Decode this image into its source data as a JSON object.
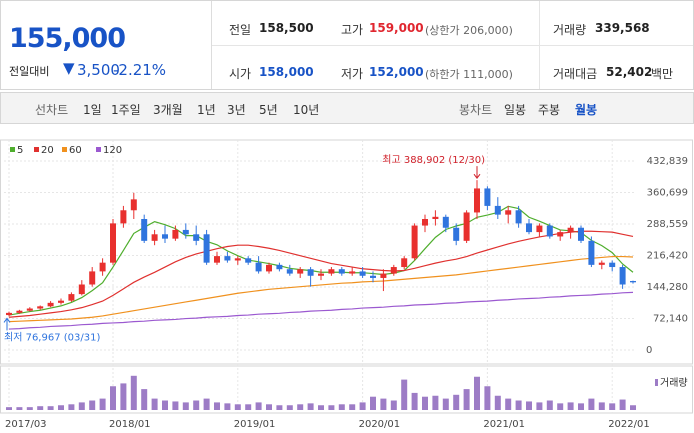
{
  "header": {
    "price": "155,000",
    "change_label": "전일대비",
    "change_arrow": "▼",
    "change": "3,500",
    "change_rate": "-2.21%"
  },
  "quote": [
    {
      "label": "전일",
      "value": "158,500"
    },
    {
      "label": "고가",
      "value": "159,000",
      "note": "(상한가 206,000)"
    },
    {
      "label": "거래량",
      "value": "339,568"
    },
    {
      "label": "시가",
      "value": "158,000"
    },
    {
      "label": "저가",
      "value": "152,000",
      "note": "(하한가 111,000)"
    },
    {
      "label": "거래대금",
      "value": "52,402",
      "unit": "백만"
    }
  ],
  "toolbar": {
    "line_label": "선차트",
    "line_periods": [
      "1일",
      "1주일",
      "3개월",
      "1년",
      "3년",
      "5년",
      "10년"
    ],
    "candle_label": "봉차트",
    "candle_periods": [
      "일봉",
      "주봉",
      "월봉"
    ],
    "selected_candle_period": 2
  },
  "chart_data": {
    "type": "candlestick",
    "categories": [
      "2017/03",
      null,
      null,
      null,
      null,
      null,
      null,
      null,
      null,
      null,
      "2018/01",
      null,
      null,
      null,
      null,
      null,
      null,
      null,
      null,
      null,
      null,
      null,
      "2019/01",
      null,
      null,
      null,
      null,
      null,
      null,
      null,
      null,
      null,
      null,
      null,
      "2020/01",
      null,
      null,
      null,
      null,
      null,
      null,
      null,
      null,
      null,
      null,
      null,
      "2021/01",
      null,
      null,
      null,
      null,
      null,
      null,
      null,
      null,
      null,
      null,
      null,
      "2022/01",
      null,
      null
    ],
    "open": [
      80000,
      85000,
      90000,
      95000,
      100000,
      108000,
      113000,
      128000,
      150000,
      180000,
      200000,
      290000,
      320000,
      300000,
      250000,
      265000,
      255000,
      275000,
      265000,
      265000,
      200000,
      215000,
      205000,
      210000,
      200000,
      180000,
      195000,
      185000,
      175000,
      185000,
      170000,
      175000,
      185000,
      175000,
      180000,
      170000,
      165000,
      175000,
      190000,
      210000,
      285000,
      300000,
      305000,
      280000,
      250000,
      315000,
      370000,
      330000,
      310000,
      320000,
      290000,
      270000,
      285000,
      260000,
      270000,
      280000,
      250000,
      195000,
      200000,
      190000,
      158000
    ],
    "high": [
      88000,
      92000,
      98000,
      102000,
      112000,
      118000,
      132000,
      160000,
      190000,
      210000,
      300000,
      330000,
      360000,
      310000,
      275000,
      285000,
      285000,
      290000,
      285000,
      275000,
      225000,
      225000,
      215000,
      215000,
      215000,
      200000,
      200000,
      195000,
      190000,
      190000,
      185000,
      190000,
      190000,
      190000,
      190000,
      180000,
      185000,
      195000,
      215000,
      290000,
      310000,
      320000,
      310000,
      290000,
      320000,
      388902,
      375000,
      350000,
      330000,
      330000,
      300000,
      290000,
      290000,
      275000,
      285000,
      285000,
      260000,
      205000,
      205000,
      195000,
      159000
    ],
    "low": [
      76967,
      83000,
      88000,
      92000,
      98000,
      104000,
      110000,
      125000,
      145000,
      170000,
      195000,
      280000,
      300000,
      245000,
      240000,
      245000,
      250000,
      255000,
      240000,
      195000,
      195000,
      200000,
      195000,
      195000,
      175000,
      175000,
      180000,
      170000,
      165000,
      145000,
      160000,
      170000,
      170000,
      170000,
      165000,
      155000,
      135000,
      170000,
      185000,
      205000,
      270000,
      285000,
      270000,
      240000,
      245000,
      300000,
      320000,
      300000,
      290000,
      280000,
      265000,
      260000,
      255000,
      250000,
      255000,
      245000,
      190000,
      185000,
      180000,
      140000,
      152000
    ],
    "close": [
      85000,
      90000,
      95000,
      100000,
      108000,
      113000,
      128000,
      150000,
      180000,
      200000,
      290000,
      320000,
      345000,
      250000,
      265000,
      255000,
      275000,
      265000,
      250000,
      200000,
      215000,
      205000,
      210000,
      200000,
      180000,
      195000,
      185000,
      175000,
      185000,
      170000,
      175000,
      185000,
      175000,
      180000,
      170000,
      165000,
      175000,
      190000,
      210000,
      285000,
      300000,
      305000,
      280000,
      250000,
      315000,
      370000,
      330000,
      310000,
      320000,
      290000,
      270000,
      285000,
      260000,
      270000,
      280000,
      250000,
      195000,
      200000,
      190000,
      150000,
      155000
    ],
    "up_color": "#e8302e",
    "down_color": "#2f74de",
    "ylim": [
      0,
      432839
    ],
    "yticks": [
      0,
      {
        "value": 72140,
        "label": "72,140"
      },
      {
        "value": 144280,
        "label": "144,280"
      },
      {
        "value": 216420,
        "label": "216,420"
      },
      {
        "value": 288559,
        "label": "288,559"
      },
      {
        "value": 360699,
        "label": "360,699"
      },
      {
        "value": 432839,
        "label": "432,839"
      }
    ],
    "grid": true,
    "moving_averages": [
      {
        "name": "5",
        "color": "#4fae2d",
        "values": [
          80000,
          84000,
          88000,
          91000,
          96000,
          101000,
          109000,
          120000,
          136000,
          154000,
          190000,
          228000,
          267000,
          281000,
          294000,
          287000,
          278000,
          262000,
          262000,
          249000,
          241000,
          227000,
          216000,
          206000,
          202000,
          198000,
          193000,
          187000,
          184000,
          182000,
          178000,
          178000,
          178000,
          177000,
          177000,
          175000,
          173000,
          176000,
          182000,
          205000,
          232000,
          258000,
          276000,
          284000,
          290000,
          304000,
          309000,
          315000,
          329000,
          324000,
          304000,
          295000,
          285000,
          275000,
          273000,
          269000,
          251000,
          239000,
          223000,
          197000,
          178000
        ]
      },
      {
        "name": "20",
        "color": "#e0312f",
        "values": [
          75000,
          77000,
          79000,
          82000,
          85000,
          88000,
          92000,
          97000,
          104000,
          112000,
          125000,
          140000,
          155000,
          167000,
          178000,
          190000,
          202000,
          212000,
          220000,
          226000,
          232000,
          237000,
          240000,
          240000,
          237000,
          233000,
          228000,
          222000,
          216000,
          210000,
          204000,
          198000,
          194000,
          190000,
          186000,
          184000,
          182000,
          181000,
          182000,
          187000,
          193000,
          199000,
          204000,
          208000,
          214000,
          222000,
          229000,
          236000,
          243000,
          249000,
          254000,
          259000,
          263000,
          267000,
          270000,
          272000,
          272000,
          271000,
          270000,
          265000,
          260000
        ]
      },
      {
        "name": "60",
        "color": "#f0911e",
        "values": [
          65000,
          66000,
          67000,
          68000,
          69000,
          70000,
          71000,
          73000,
          75000,
          78000,
          82000,
          86000,
          90000,
          94000,
          98000,
          102000,
          106000,
          110000,
          114000,
          118000,
          122000,
          126000,
          130000,
          133000,
          136000,
          139000,
          141000,
          143000,
          145000,
          147000,
          149000,
          151000,
          153000,
          154000,
          156000,
          157000,
          158000,
          160000,
          162000,
          164000,
          166000,
          168000,
          170000,
          172000,
          175000,
          178000,
          181000,
          184000,
          187000,
          190000,
          193000,
          196000,
          199000,
          202000,
          205000,
          208000,
          210000,
          212000,
          214000,
          214000,
          213000
        ]
      },
      {
        "name": "120",
        "color": "#9b59d0",
        "values": [
          48000,
          49000,
          51000,
          52000,
          54000,
          55000,
          56000,
          58000,
          59000,
          61000,
          62000,
          63000,
          65000,
          66000,
          68000,
          69000,
          70000,
          72000,
          73000,
          75000,
          76000,
          77000,
          79000,
          80000,
          82000,
          83000,
          84000,
          86000,
          87000,
          89000,
          90000,
          91000,
          93000,
          94000,
          96000,
          97000,
          98000,
          100000,
          101000,
          103000,
          104000,
          105000,
          107000,
          108000,
          110000,
          111000,
          112000,
          114000,
          115000,
          117000,
          118000,
          119000,
          121000,
          122000,
          124000,
          125000,
          126000,
          128000,
          129000,
          131000,
          132000
        ]
      }
    ],
    "volume": {
      "name": "거래량",
      "color": "#9d7cc6",
      "ylim": [
        0,
        40000000
      ],
      "values": [
        3000000,
        3000000,
        3000000,
        4000000,
        4000000,
        5000000,
        6000000,
        8000000,
        10000000,
        12000000,
        25000000,
        28000000,
        36000000,
        22000000,
        12000000,
        10000000,
        9000000,
        8000000,
        10000000,
        12000000,
        8000000,
        7000000,
        6000000,
        6000000,
        8000000,
        6000000,
        5000000,
        5000000,
        6000000,
        7000000,
        5000000,
        5000000,
        6000000,
        6000000,
        8000000,
        14000000,
        12000000,
        10000000,
        32000000,
        18000000,
        14000000,
        15000000,
        12000000,
        16000000,
        22000000,
        35000000,
        25000000,
        15000000,
        12000000,
        10000000,
        9000000,
        8000000,
        10000000,
        7000000,
        8000000,
        7000000,
        12000000,
        8000000,
        7000000,
        11000000,
        5000000
      ]
    },
    "annotations": [
      {
        "text": "최고 388,902 (12/30)",
        "value": 388902,
        "color": "#d0202a"
      },
      {
        "text": "최저 76,967 (03/31)",
        "value": 76967,
        "color": "#2f74de"
      }
    ]
  }
}
